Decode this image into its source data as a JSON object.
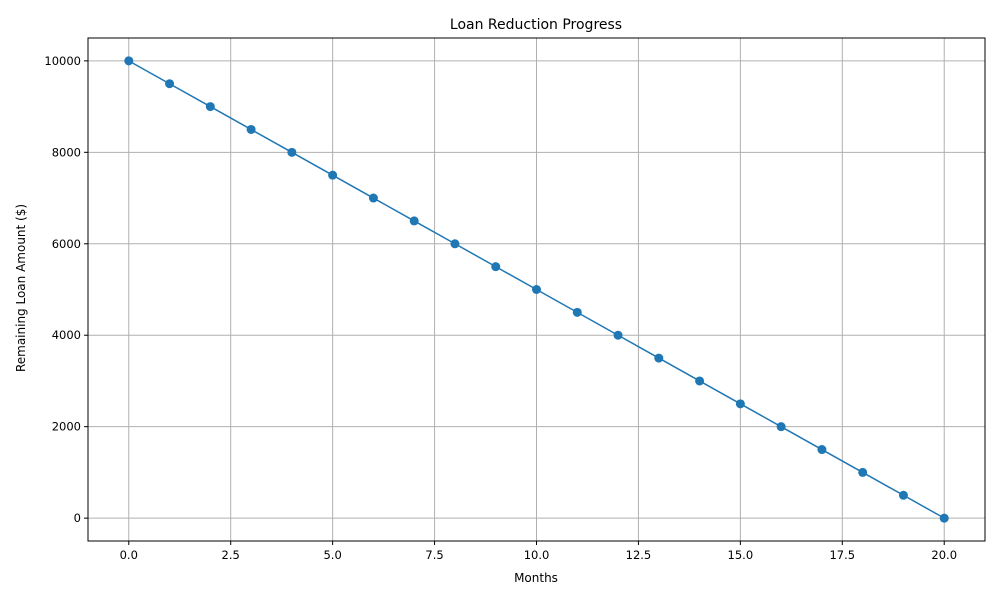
{
  "chart_data": {
    "type": "line",
    "title": "Loan Reduction Progress",
    "xlabel": "Months",
    "ylabel": "Remaining Loan Amount ($)",
    "x": [
      0,
      1,
      2,
      3,
      4,
      5,
      6,
      7,
      8,
      9,
      10,
      11,
      12,
      13,
      14,
      15,
      16,
      17,
      18,
      19,
      20
    ],
    "series": [
      {
        "values": [
          10000,
          9500,
          9000,
          8500,
          8000,
          7500,
          7000,
          6500,
          6000,
          5500,
          5000,
          4500,
          4000,
          3500,
          3000,
          2500,
          2000,
          1500,
          1000,
          500,
          0
        ],
        "color": "#1f77b4",
        "marker": "circle"
      }
    ],
    "xlim": [
      -1,
      21
    ],
    "ylim": [
      -500,
      10500
    ],
    "xticks": [
      0.0,
      2.5,
      5.0,
      7.5,
      10.0,
      12.5,
      15.0,
      17.5,
      20.0
    ],
    "xtick_labels": [
      "0.0",
      "2.5",
      "5.0",
      "7.5",
      "10.0",
      "12.5",
      "15.0",
      "17.5",
      "20.0"
    ],
    "yticks": [
      0,
      2000,
      4000,
      6000,
      8000,
      10000
    ],
    "ytick_labels": [
      "0",
      "2000",
      "4000",
      "6000",
      "8000",
      "10000"
    ],
    "grid": true,
    "legend": "none"
  }
}
